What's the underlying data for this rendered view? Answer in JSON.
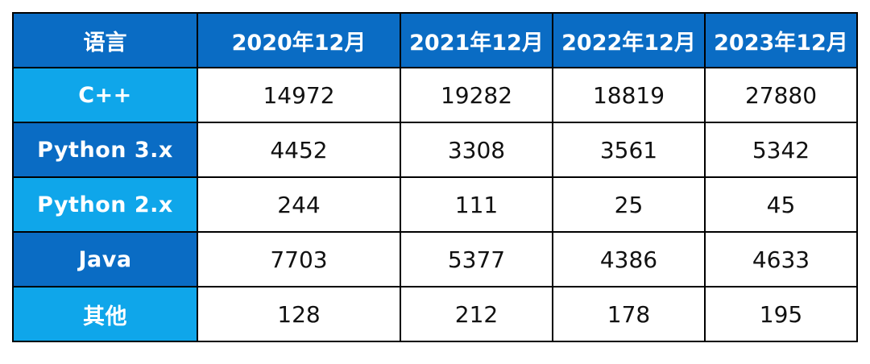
{
  "colors": {
    "header_bg": "#0a6cc4",
    "row_label_light": "#0fa6ea",
    "row_label_dark": "#0a6cc4",
    "border": "#000000",
    "cell_bg": "#ffffff"
  },
  "table": {
    "columns": [
      "语言",
      "2020年12月",
      "2021年12月",
      "2022年12月",
      "2023年12月"
    ],
    "rows": [
      {
        "label": "C++",
        "values": [
          "14972",
          "19282",
          "18819",
          "27880"
        ]
      },
      {
        "label": "Python 3.x",
        "values": [
          "4452",
          "3308",
          "3561",
          "5342"
        ]
      },
      {
        "label": "Python 2.x",
        "values": [
          "244",
          "111",
          "25",
          "45"
        ]
      },
      {
        "label": "Java",
        "values": [
          "7703",
          "5377",
          "4386",
          "4633"
        ]
      },
      {
        "label": "其他",
        "values": [
          "128",
          "212",
          "178",
          "195"
        ]
      }
    ]
  }
}
